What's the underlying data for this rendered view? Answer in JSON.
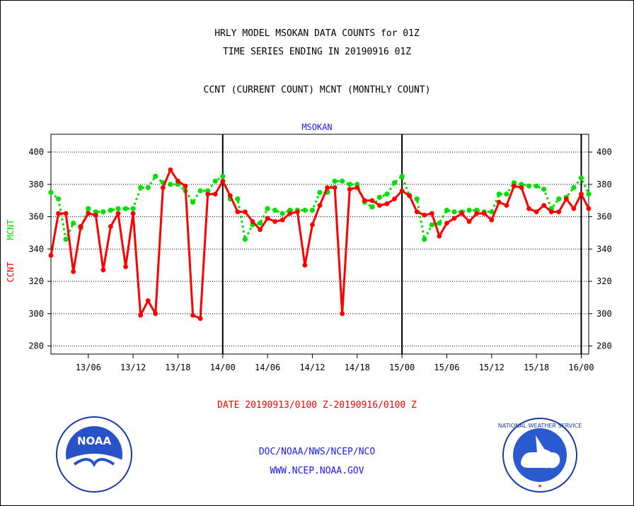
{
  "header": {
    "title_line1": "HRLY MODEL MSOKAN DATA COUNTS for 01Z",
    "title_line2": "TIME SERIES ENDING IN 20190916 01Z",
    "subtitle": "CCNT (CURRENT COUNT) MCNT (MONTHLY COUNT)"
  },
  "footer": {
    "date_range": "DATE 20190913/0100 Z-20190916/0100 Z",
    "org": "DOC/NOAA/NWS/NCEP/NCO",
    "url": "WWW.NCEP.NOAA.GOV",
    "noaa_logo_text": "NOAA",
    "nws_logo_text": "NATIONAL WEATHER SERVICE"
  },
  "colors": {
    "ccnt": "#ff0000",
    "mcnt": "#00e000",
    "station": "#1a1aff"
  },
  "chart_data": {
    "type": "line",
    "title": "MSOKAN",
    "ylabel_left_a": "CCNT",
    "ylabel_left_b": "MCNT",
    "ylim": [
      275,
      411
    ],
    "y_ticks": [
      280,
      300,
      320,
      340,
      360,
      380,
      400
    ],
    "x_ticks": [
      {
        "h": 5,
        "label": "13/06"
      },
      {
        "h": 11,
        "label": "13/12"
      },
      {
        "h": 17,
        "label": "13/18"
      },
      {
        "h": 23,
        "label": "14/00"
      },
      {
        "h": 29,
        "label": "14/06"
      },
      {
        "h": 35,
        "label": "14/12"
      },
      {
        "h": 41,
        "label": "14/18"
      },
      {
        "h": 47,
        "label": "15/00"
      },
      {
        "h": 53,
        "label": "15/06"
      },
      {
        "h": 59,
        "label": "15/12"
      },
      {
        "h": 65,
        "label": "15/18"
      },
      {
        "h": 71,
        "label": "16/00"
      }
    ],
    "day_lines": [
      23,
      47,
      71
    ],
    "grid": true,
    "series": [
      {
        "name": "CCNT",
        "color": "#ff0000",
        "values": [
          336,
          362,
          362,
          326,
          354,
          362,
          361,
          327,
          354,
          362,
          329,
          362,
          299,
          308,
          300,
          378,
          389,
          382,
          379,
          299,
          297,
          374,
          374,
          382,
          373,
          363,
          363,
          357,
          352,
          359,
          357,
          358,
          362,
          363,
          330,
          355,
          367,
          378,
          378,
          300,
          377,
          378,
          370,
          370,
          367,
          368,
          371,
          376,
          373,
          363,
          361,
          362,
          348,
          356,
          359,
          362,
          357,
          362,
          362,
          358,
          369,
          367,
          379,
          378,
          365,
          363,
          367,
          363,
          363,
          371,
          365,
          374,
          365
        ]
      },
      {
        "name": "MCNT",
        "color": "#00e000",
        "values": [
          375,
          371,
          346,
          356,
          353,
          365,
          363,
          363,
          364,
          365,
          365,
          365,
          378,
          378,
          385,
          381,
          380,
          380,
          376,
          369,
          376,
          376,
          382,
          385,
          371,
          371,
          346,
          355,
          356,
          365,
          364,
          362,
          364,
          364,
          364,
          364,
          375,
          375,
          382,
          382,
          380,
          380,
          369,
          366,
          372,
          374,
          381,
          385,
          373,
          371,
          346,
          355,
          356,
          364,
          363,
          363,
          364,
          364,
          363,
          363,
          374,
          374,
          381,
          380,
          379,
          379,
          377,
          365,
          371,
          372,
          378,
          384,
          374
        ]
      }
    ]
  }
}
